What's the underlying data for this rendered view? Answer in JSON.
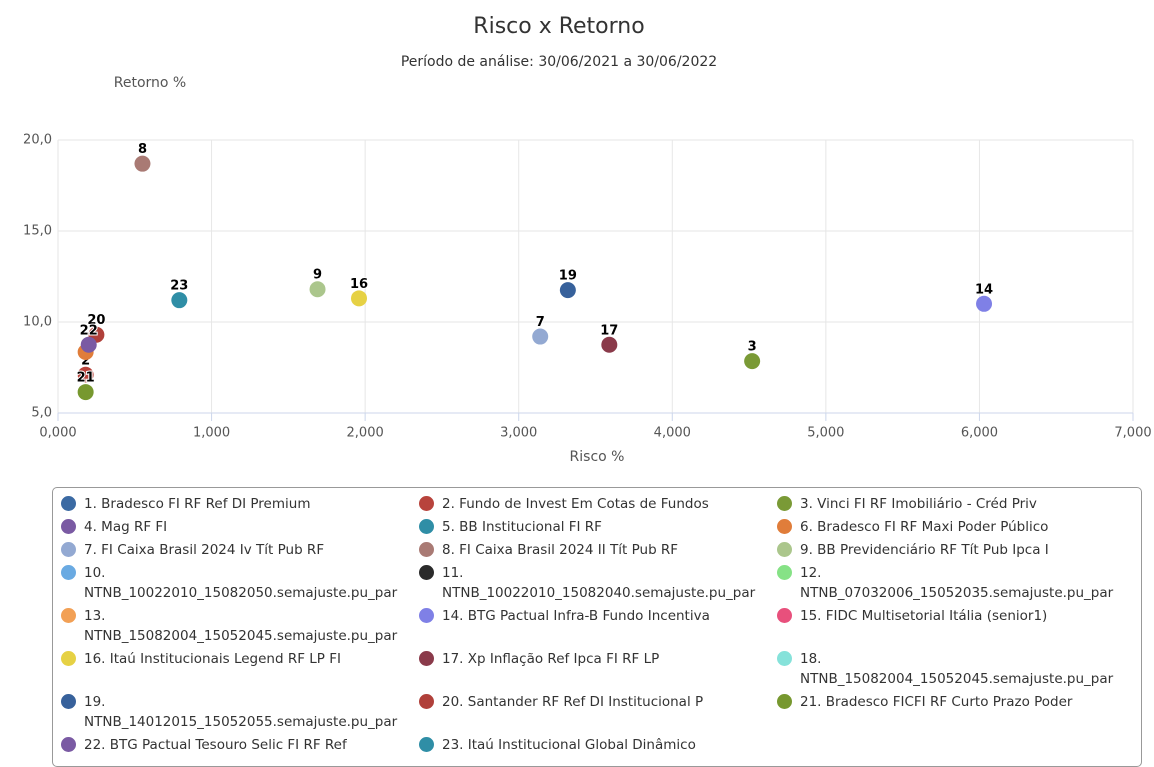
{
  "chart_data": {
    "type": "scatter",
    "title": "Risco x Retorno",
    "subtitle": "Período de análise: 30/06/2021 a 30/06/2022",
    "x_label": "Risco %",
    "y_label": "Retorno %",
    "xlim": [
      0,
      7000
    ],
    "ylim": [
      5,
      20
    ],
    "xticks": [
      {
        "value": 0,
        "label": "0,000"
      },
      {
        "value": 1000,
        "label": "1,000"
      },
      {
        "value": 2000,
        "label": "2,000"
      },
      {
        "value": 3000,
        "label": "3,000"
      },
      {
        "value": 4000,
        "label": "4,000"
      },
      {
        "value": 5000,
        "label": "5,000"
      },
      {
        "value": 6000,
        "label": "6,000"
      },
      {
        "value": 7000,
        "label": "7,000"
      }
    ],
    "yticks": [
      {
        "value": 5,
        "label": "5,0"
      },
      {
        "value": 10,
        "label": "10,0"
      },
      {
        "value": 15,
        "label": "15,0"
      },
      {
        "value": 20,
        "label": "20,0"
      }
    ],
    "grid": true,
    "series": [
      {
        "name": "1. Bradesco FI RF Ref DI Premium",
        "color": "#3b6aa3",
        "x": [
          null
        ],
        "values": [
          null
        ],
        "point_label": null
      },
      {
        "name": "2. Fundo de Invest Em Cotas de Fundos",
        "color": "#b8433c",
        "x": [
          180
        ],
        "values": [
          7.1
        ],
        "point_label": "2"
      },
      {
        "name": "3. Vinci FI RF Imobiliário - Créd Priv",
        "color": "#7a9a36",
        "x": [
          4520
        ],
        "values": [
          7.85
        ],
        "point_label": "3"
      },
      {
        "name": "4. Mag RF FI",
        "color": "#7a5aa3",
        "x": [
          null
        ],
        "values": [
          null
        ],
        "point_label": null
      },
      {
        "name": "5. BB Institucional FI RF",
        "color": "#2f8ea6",
        "x": [
          null
        ],
        "values": [
          null
        ],
        "point_label": null
      },
      {
        "name": "6. Bradesco FI RF Maxi Poder Público",
        "color": "#e07d3a",
        "x": [
          180
        ],
        "values": [
          8.35
        ],
        "point_label": null
      },
      {
        "name": "7. FI Caixa Brasil 2024 Iv Tít Pub RF",
        "color": "#93a9d2",
        "x": [
          3140
        ],
        "values": [
          9.2
        ],
        "point_label": "7"
      },
      {
        "name": "8. FI Caixa Brasil 2024 II Tít Pub RF",
        "color": "#a97a74",
        "x": [
          550
        ],
        "values": [
          18.7
        ],
        "point_label": "8"
      },
      {
        "name": "9. BB Previdenciário RF Tít Pub Ipca I",
        "color": "#abc68c",
        "x": [
          1690
        ],
        "values": [
          11.8
        ],
        "point_label": "9"
      },
      {
        "name": "10. NTNB_10022010_15082050.semajuste.pu_par",
        "color": "#6aaae2",
        "x": [
          null
        ],
        "values": [
          null
        ],
        "point_label": null
      },
      {
        "name": "11. NTNB_10022010_15082040.semajuste.pu_par",
        "color": "#2b2b2b",
        "x": [
          null
        ],
        "values": [
          null
        ],
        "point_label": null
      },
      {
        "name": "12. NTNB_07032006_15052035.semajuste.pu_par",
        "color": "#86e286",
        "x": [
          null
        ],
        "values": [
          null
        ],
        "point_label": null
      },
      {
        "name": "13. NTNB_15082004_15052045.semajuste.pu_par",
        "color": "#f2a055",
        "x": [
          null
        ],
        "values": [
          null
        ],
        "point_label": null
      },
      {
        "name": "14. BTG Pactual Infra-B Fundo Incentiva",
        "color": "#7f80e6",
        "x": [
          6030
        ],
        "values": [
          11.0
        ],
        "point_label": "14"
      },
      {
        "name": "15. FIDC Multisetorial Itália (senior1)",
        "color": "#e8507c",
        "x": [
          null
        ],
        "values": [
          null
        ],
        "point_label": null
      },
      {
        "name": "16. Itaú Institucionais Legend RF LP FI",
        "color": "#e6d144",
        "x": [
          1960
        ],
        "values": [
          11.3
        ],
        "point_label": "16"
      },
      {
        "name": "17. Xp Inflação Ref Ipca FI RF LP",
        "color": "#8a3a4a",
        "x": [
          3590
        ],
        "values": [
          8.75
        ],
        "point_label": "17"
      },
      {
        "name": "18. NTNB_15082004_15052045.semajuste.pu_par",
        "color": "#86e2da",
        "x": [
          null
        ],
        "values": [
          null
        ],
        "point_label": null
      },
      {
        "name": "19. NTNB_14012015_15052055.semajuste.pu_par",
        "color": "#37619b",
        "x": [
          3320
        ],
        "values": [
          11.75
        ],
        "point_label": "19"
      },
      {
        "name": "20. Santander RF Ref DI Institucional P",
        "color": "#b0403a",
        "x": [
          250
        ],
        "values": [
          9.3
        ],
        "point_label": "20"
      },
      {
        "name": "21. Bradesco FICFI RF Curto Prazo Poder",
        "color": "#77982f",
        "x": [
          180
        ],
        "values": [
          6.15
        ],
        "point_label": "21"
      },
      {
        "name": "22. BTG Pactual Tesouro Selic FI RF Ref",
        "color": "#7a5aa3",
        "x": [
          200
        ],
        "values": [
          8.75
        ],
        "point_label": "22"
      },
      {
        "name": "23. Itaú Institucional Global Dinâmico",
        "color": "#2f8ea6",
        "x": [
          790
        ],
        "values": [
          11.2
        ],
        "point_label": "23"
      }
    ]
  }
}
